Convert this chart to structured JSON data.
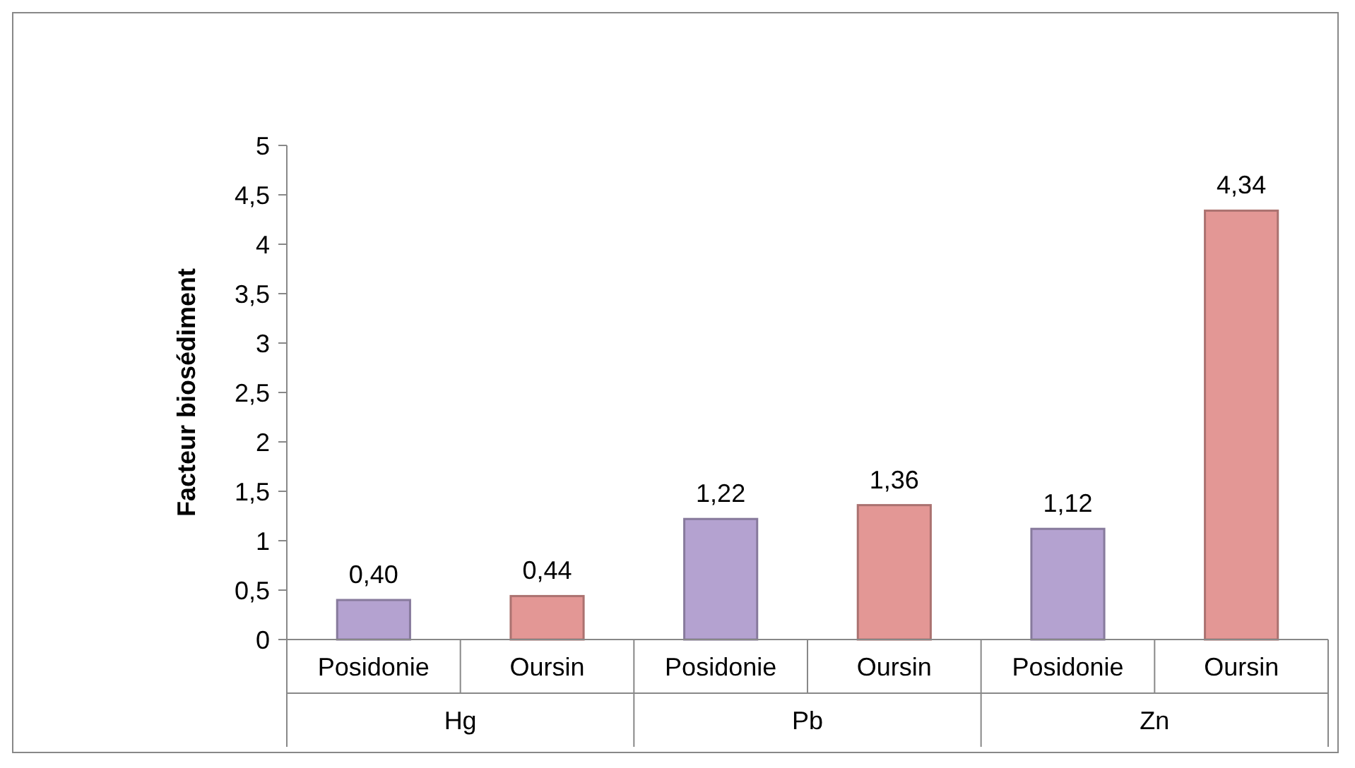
{
  "chart_data": {
    "type": "bar",
    "ylabel": "Facteur biosédiment",
    "categories": [
      "Hg",
      "Pb",
      "Zn"
    ],
    "series": [
      {
        "name": "Posidonie",
        "color": "#b4a2d0",
        "values": [
          0.4,
          1.22,
          1.12
        ],
        "value_labels": [
          "0,40",
          "1,22",
          "1,12"
        ]
      },
      {
        "name": "Oursin",
        "color": "#e39795",
        "values": [
          0.44,
          1.36,
          4.34
        ],
        "value_labels": [
          "0,44",
          "1,36",
          "4,34"
        ]
      }
    ],
    "ylim": [
      0,
      5
    ],
    "yticks": [
      0,
      {
        "value": 0.5,
        "label": "0,5"
      },
      1,
      {
        "value": 1.5,
        "label": "1,5"
      },
      2,
      {
        "value": 2.5,
        "label": "2,5"
      },
      3,
      {
        "value": 3.5,
        "label": "3,5"
      },
      4,
      {
        "value": 4.5,
        "label": "4,5"
      },
      5
    ],
    "grid": false
  }
}
